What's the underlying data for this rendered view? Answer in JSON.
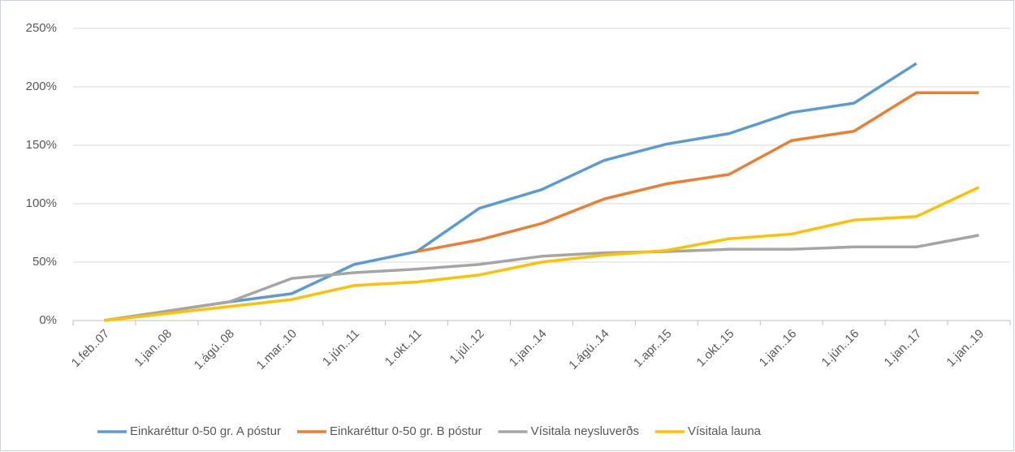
{
  "chart_data": {
    "type": "line",
    "categories": [
      "1.feb..07",
      "1.jan..08",
      "1.ágú..08",
      "1.mar..10",
      "1.jún..11",
      "1.okt..11",
      "1.júl..12",
      "1.jan..14",
      "1.ágú..14",
      "1.apr..15",
      "1.okt..15",
      "1.jan..16",
      "1.jún..16",
      "1.jan..17",
      "1.jan..19"
    ],
    "series": [
      {
        "name": "Einkaréttur 0-50 gr. A póstur",
        "color": "#5b9bd5",
        "values": [
          0,
          8,
          16,
          23,
          48,
          59,
          96,
          112,
          137,
          151,
          160,
          178,
          186,
          220,
          null
        ]
      },
      {
        "name": "Einkaréttur 0-50 gr. B póstur",
        "color": "#ed7d31",
        "values": [
          null,
          null,
          null,
          null,
          null,
          59,
          69,
          83,
          104,
          117,
          125,
          154,
          162,
          195,
          195
        ]
      },
      {
        "name": "Vísitala neysluverðs",
        "color": "#a5a5a5",
        "values": [
          0,
          8,
          16,
          36,
          41,
          44,
          48,
          55,
          58,
          59,
          61,
          61,
          63,
          63,
          73
        ]
      },
      {
        "name": "Vísitala launa",
        "color": "#ffc000",
        "values": [
          0,
          6,
          12,
          18,
          30,
          33,
          39,
          50,
          56,
          60,
          70,
          74,
          86,
          89,
          114
        ]
      }
    ],
    "ylim": [
      0,
      250
    ],
    "yticks": [
      {
        "value": 0,
        "label": "0%"
      },
      {
        "value": 50,
        "label": "50%"
      },
      {
        "value": 100,
        "label": "100%"
      },
      {
        "value": 150,
        "label": "150%"
      },
      {
        "value": 200,
        "label": "200%"
      },
      {
        "value": 250,
        "label": "250%"
      }
    ],
    "grid": true,
    "legend": "bottom"
  }
}
